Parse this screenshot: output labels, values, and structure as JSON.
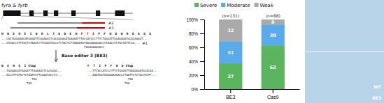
{
  "chart_data": {
    "type": "bar",
    "stacked": true,
    "data_labels": true,
    "legend": "top",
    "grid": false,
    "categories": [
      "BE3",
      "Cas9"
    ],
    "n_labels": [
      "(n=131)",
      "(n=88)"
    ],
    "series": [
      {
        "name": "Severe",
        "color": "#5ab55e",
        "values": [
          37,
          62
        ]
      },
      {
        "name": "Moderate",
        "color": "#5aabea",
        "values": [
          31,
          30
        ]
      },
      {
        "name": "Weak",
        "color": "#aaaaaa",
        "values": [
          32,
          8
        ]
      }
    ],
    "ylim": [
      0,
      100
    ],
    "yticks": [
      {
        "value": 0,
        "label": "0%"
      },
      {
        "value": 20,
        "label": "20%"
      },
      {
        "value": 40,
        "label": "40%"
      },
      {
        "value": 60,
        "label": "60%"
      },
      {
        "value": 80,
        "label": "80%"
      },
      {
        "value": 100,
        "label": "100%"
      }
    ],
    "annotations": [
      "fyra & fyrb",
      "#2",
      "#3",
      "H  W  E  H  E  I  Q  K  L  T  G  D  E  N  F  T  I  P  F  W  D  W  R  D  A  Q  G",
      "...CACTGGGAAACATGAGATTCAGAAGCTCACGGGAGATGAGAATTTACCATCCCTTTCTGGGATTGGAGAGATGCACAAGGT...",
      "...GTGACCCTTTACTCTAAGTCTTCGAGTGCCCTCTACTCTTAAAATGTAGGGAAAGACCCTAACCTCTACTGTTCCA...",
      "TAGGGAAAGACC",
      "#1",
      "Base editor 3 (BE3)",
      "W  E  H  E  I",
      "Stop",
      "...TGGGAACATGAGATTTAGAAGCTCACGGGA...",
      "...ACCCTTGTACTCTAAATCTTCGAGTGCCCT...",
      "TAG",
      "TAA",
      "F  T  I  P  F  W  D",
      "Stop",
      "...TTTACCATCCCTTTCTGGGATTAAAGAGATGCACAA...",
      "...AAATGGTAGGGAAAGACCCTAATTCTCTACGTGTT...",
      "TAA",
      "TAA",
      "WT",
      "BE3"
    ]
  }
}
